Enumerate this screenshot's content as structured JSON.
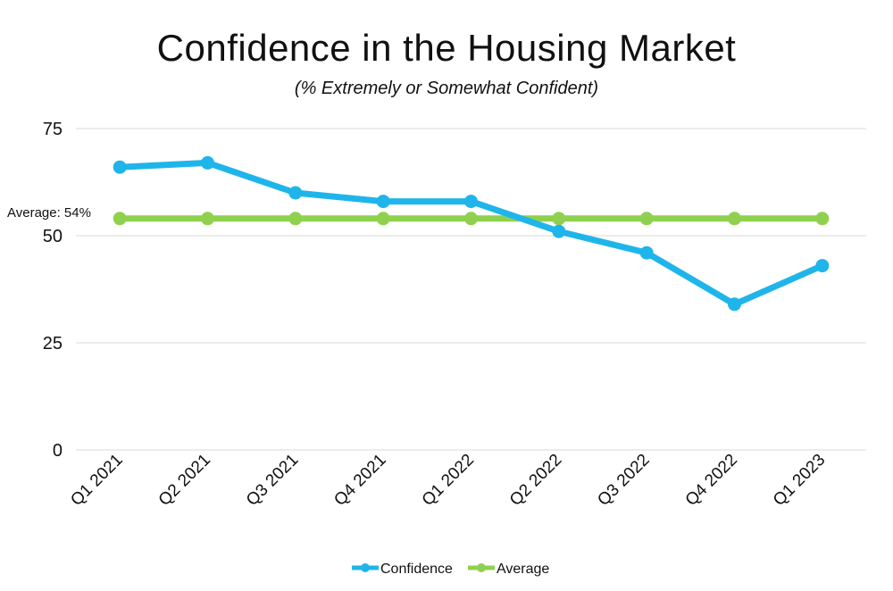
{
  "chart_data": {
    "type": "line",
    "title": "Confidence in the Housing Market",
    "subtitle": "(% Extremely or Somewhat Confident)",
    "categories": [
      "Q1 2021",
      "Q2 2021",
      "Q3 2021",
      "Q4 2021",
      "Q1 2022",
      "Q2 2022",
      "Q3 2022",
      "Q4 2022",
      "Q1 2023"
    ],
    "series": [
      {
        "name": "Confidence",
        "color": "#1fb5ea",
        "values": [
          66,
          67,
          60,
          58,
          58,
          51,
          46,
          34,
          43
        ]
      },
      {
        "name": "Average",
        "color": "#8fd14f",
        "values": [
          54,
          54,
          54,
          54,
          54,
          54,
          54,
          54,
          54
        ]
      }
    ],
    "ylim": [
      0,
      75
    ],
    "yticks": [
      0,
      25,
      50,
      75
    ],
    "grid": true,
    "legend": "bottom",
    "annotation": "Average: 54%"
  }
}
